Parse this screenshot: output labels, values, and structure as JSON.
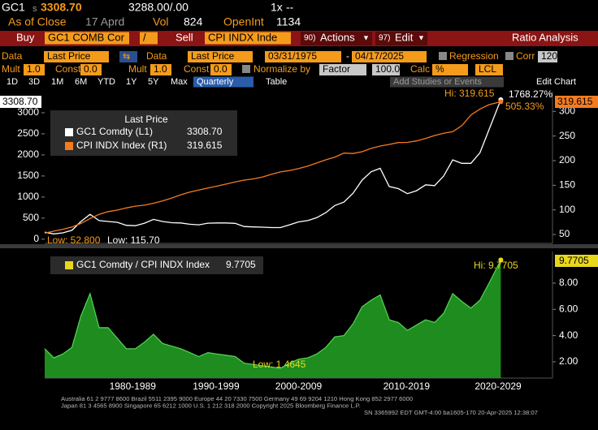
{
  "header": {
    "ticker": "GC1",
    "price_prefix": "s",
    "price": "3308.70",
    "bid_ask": "3288.00/.00",
    "multiplier": "1x",
    "change": "--",
    "as_of": "As of Close",
    "date": "17 Aprd",
    "vol_label": "Vol",
    "vol": "824",
    "oi_label": "OpenInt",
    "oi": "1134"
  },
  "menu": {
    "buy": "Buy",
    "security1": "GC1 COMB Cor",
    "slash": "/",
    "sell": "Sell",
    "security2": "CPI INDX Inde",
    "actions_num": "90)",
    "actions": "Actions",
    "edit_num": "97)",
    "edit": "Edit",
    "title": "Ratio Analysis"
  },
  "settings": {
    "data1_label": "Data",
    "data1": "Last Price",
    "data2_label": "Data",
    "data2": "Last Price",
    "start": "03/31/1975",
    "dash": "-",
    "end": "04/17/2025",
    "regression": "Regression",
    "corr": "Corr",
    "corr_value": "120",
    "mult1_label": "Mult",
    "mult1": "1.0",
    "const1_label": "Const",
    "const1": "0.0",
    "mult2_label": "Mult",
    "mult2": "1.0",
    "const2_label": "Const",
    "const2": "0.0",
    "normalize": "Normalize by",
    "normalize_value": "Factor",
    "factor": "100.0",
    "calc": "Calc",
    "calc_value": "%",
    "lcl": "LCL"
  },
  "periods": [
    "1D",
    "3D",
    "1M",
    "6M",
    "YTD",
    "1Y",
    "5Y",
    "Max"
  ],
  "frequency": "Quarterly",
  "table": "Table",
  "studies": "Add Studies or Events",
  "edit_chart": "Edit Chart",
  "footer": [
    "Australia 61 2 9777 8600 Brazil 5511 2395 9000 Europe 44 20 7330 7500 Germany 49 69 9204 1210 Hong Kong 852 2977 6000",
    "Japan 81 3 4565 8900        Singapore 65 6212 1000        U.S. 1 212 318 2000        Copyright 2025 Bloomberg Finance L.P.",
    "SN 3365992 EDT  GMT-4:00 ba1605-170 20-Apr-2025 12:38:07"
  ],
  "chart_data": [
    {
      "type": "line",
      "legend_title": "Last Price",
      "grid": false,
      "x": [
        1975,
        1976,
        1977,
        1978,
        1979,
        1980,
        1981,
        1982,
        1983,
        1984,
        1985,
        1986,
        1987,
        1988,
        1989,
        1990,
        1991,
        1992,
        1993,
        1994,
        1995,
        1996,
        1997,
        1998,
        1999,
        2000,
        2001,
        2002,
        2003,
        2004,
        2005,
        2006,
        2007,
        2008,
        2009,
        2010,
        2011,
        2012,
        2013,
        2014,
        2015,
        2016,
        2017,
        2018,
        2019,
        2020,
        2021,
        2022,
        2023,
        2024,
        2025.3
      ],
      "xlim": [
        1975,
        2031
      ],
      "ylim": [
        -100,
        3500
      ],
      "yticks": [
        0,
        500,
        1000,
        1500,
        2000,
        2500,
        3000
      ],
      "y2lim": [
        32,
        340
      ],
      "y2ticks": [
        50,
        100,
        150,
        200,
        250,
        300
      ],
      "series": [
        {
          "name": "GC1 Comdty  (L1)",
          "color": "#ffffff",
          "last": "3308.70",
          "values": [
            165,
            125,
            150,
            210,
            420,
            590,
            440,
            420,
            400,
            330,
            320,
            380,
            470,
            420,
            390,
            385,
            355,
            340,
            380,
            385,
            385,
            375,
            300,
            290,
            285,
            275,
            275,
            340,
            410,
            440,
            510,
            630,
            800,
            880,
            1090,
            1400,
            1600,
            1680,
            1250,
            1200,
            1080,
            1150,
            1290,
            1270,
            1500,
            1880,
            1800,
            1800,
            2050,
            2600,
            3308.7
          ]
        },
        {
          "name": "CPI INDX Index  (R1)",
          "color": "#f47b20",
          "axis": "y2",
          "last": "319.615",
          "values": [
            52.8,
            56.9,
            60.6,
            65.2,
            72.6,
            82.4,
            90.9,
            96.5,
            99.6,
            103.9,
            107.6,
            109.6,
            113.6,
            118.3,
            124.0,
            130.7,
            136.2,
            140.3,
            144.5,
            148.2,
            152.4,
            156.9,
            160.5,
            163.0,
            166.6,
            172.2,
            177.1,
            179.9,
            184.0,
            188.9,
            195.3,
            201.6,
            207.3,
            215.3,
            214.5,
            218.1,
            224.9,
            229.6,
            233.0,
            236.7,
            237.0,
            240.0,
            245.1,
            251.1,
            255.7,
            258.8,
            271.0,
            292.7,
            304.7,
            313.7,
            319.615
          ]
        }
      ],
      "annotations": [
        "Hi: 319.615",
        "1768.27%",
        "505.33%",
        "Low: 52.800",
        "Low: 115.70"
      ]
    },
    {
      "type": "area",
      "grid": false,
      "x": [
        1975,
        1976,
        1977,
        1978,
        1979,
        1980,
        1981,
        1982,
        1983,
        1984,
        1985,
        1986,
        1987,
        1988,
        1989,
        1990,
        1991,
        1992,
        1993,
        1994,
        1995,
        1996,
        1997,
        1998,
        1999,
        2000,
        2001,
        2002,
        2003,
        2004,
        2005,
        2006,
        2007,
        2008,
        2009,
        2010,
        2011,
        2012,
        2013,
        2014,
        2015,
        2016,
        2017,
        2018,
        2019,
        2020,
        2021,
        2022,
        2023,
        2024,
        2025.3
      ],
      "xlim": [
        1975,
        2031
      ],
      "xticks": [
        {
          "value": 1984.7,
          "label": "1980-1989"
        },
        {
          "value": 1993.9,
          "label": "1990-1999"
        },
        {
          "value": 2003.0,
          "label": "2000-2009"
        },
        {
          "value": 2014.9,
          "label": "2010-2019"
        },
        {
          "value": 2025.0,
          "label": "2020-2029"
        }
      ],
      "y2lim": [
        0.76,
        10.41
      ],
      "y2ticks": [
        {
          "value": 2,
          "label": "2.00"
        },
        {
          "value": 4,
          "label": "4.00"
        },
        {
          "value": 6,
          "label": "6.00"
        },
        {
          "value": 8,
          "label": "8.00"
        }
      ],
      "series": [
        {
          "name": "GC1 Comdty / CPI INDX Index",
          "color": "#1e8c1e",
          "axis": "y2",
          "last": "9.7705",
          "values": [
            3.0,
            2.3,
            2.6,
            3.1,
            5.5,
            7.2,
            4.6,
            4.6,
            3.8,
            3.0,
            3.0,
            3.5,
            4.1,
            3.4,
            3.2,
            3.0,
            2.7,
            2.4,
            2.7,
            2.6,
            2.5,
            2.4,
            1.9,
            1.8,
            1.7,
            1.6,
            1.5,
            1.9,
            2.2,
            2.3,
            2.6,
            3.1,
            3.9,
            4.0,
            4.9,
            6.2,
            6.7,
            7.1,
            5.2,
            5.0,
            4.4,
            4.8,
            5.2,
            5.0,
            5.7,
            7.2,
            6.6,
            6.1,
            6.7,
            8.0,
            9.7705
          ]
        }
      ],
      "annotations": [
        "Hi: 9.7705",
        "Low: 1.4645"
      ]
    }
  ]
}
